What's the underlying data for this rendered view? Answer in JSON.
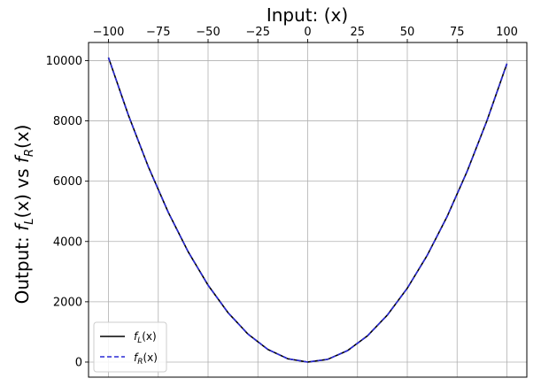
{
  "chart_data": {
    "type": "line",
    "title": "Input: (x)",
    "xlabel": "",
    "ylabel": "Output: f_L(x) vs f_R(x)",
    "ylabel_parts": {
      "prefix": "Output: ",
      "f1": "f",
      "s1": "L",
      "arg1": "(x) vs ",
      "f2": "f",
      "s2": "R",
      "arg2": "(x)"
    },
    "x_axis_position": "top",
    "xlim": [
      -110,
      110
    ],
    "ylim": [
      -500,
      10600
    ],
    "xticks": [
      -100,
      -75,
      -50,
      -25,
      0,
      25,
      50,
      75,
      100
    ],
    "xtick_labels": [
      "−100",
      "−75",
      "−50",
      "−25",
      "0",
      "25",
      "50",
      "75",
      "100"
    ],
    "yticks": [
      0,
      2000,
      4000,
      6000,
      8000,
      10000
    ],
    "ytick_labels": [
      "0",
      "2000",
      "4000",
      "6000",
      "8000",
      "10000"
    ],
    "grid": true,
    "legend_position": "lower-left",
    "x": [
      -100,
      -90,
      -80,
      -70,
      -60,
      -50,
      -40,
      -30,
      -20,
      -10,
      0,
      10,
      20,
      30,
      40,
      50,
      60,
      70,
      80,
      90,
      100
    ],
    "series": [
      {
        "name": "f_L(x)",
        "legend_parts": {
          "f": "f",
          "sub": "L",
          "arg": "(x)"
        },
        "style": "solid",
        "color": "#000000",
        "values": [
          10100,
          8190,
          6480,
          4970,
          3660,
          2550,
          1640,
          930,
          420,
          110,
          0,
          90,
          380,
          870,
          1560,
          2450,
          3540,
          4830,
          6320,
          8010,
          9900
        ]
      },
      {
        "name": "f_R(x)",
        "legend_parts": {
          "f": "f",
          "sub": "R",
          "arg": "(x)"
        },
        "style": "dashed",
        "color": "#2a2ad6",
        "values": [
          10100,
          8190,
          6480,
          4970,
          3660,
          2550,
          1640,
          930,
          420,
          110,
          0,
          90,
          380,
          870,
          1560,
          2450,
          3540,
          4830,
          6320,
          8010,
          9900
        ]
      }
    ]
  }
}
